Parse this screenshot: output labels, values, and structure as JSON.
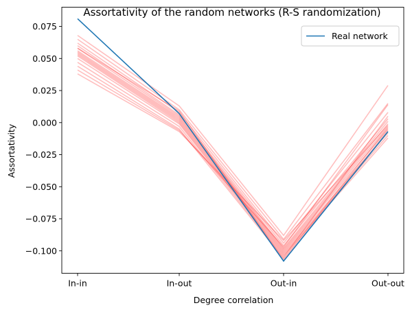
{
  "chart_data": {
    "type": "line",
    "title": "Assortativity of the random networks (R-S randomization)",
    "xlabel": "Degree correlation",
    "ylabel": "Assortativity",
    "categories": [
      "In-in",
      "In-out",
      "Out-in",
      "Out-out"
    ],
    "ylim": [
      -0.1175,
      0.09
    ],
    "yticks": [
      0.075,
      0.05,
      0.025,
      0.0,
      -0.025,
      -0.05,
      -0.075,
      -0.1
    ],
    "ytick_labels": [
      "0.075",
      "0.050",
      "0.025",
      "0.000",
      "−0.025",
      "−0.050",
      "−0.075",
      "−0.100"
    ],
    "grid": false,
    "legend": {
      "position": "top-right",
      "entries": [
        "Real network"
      ]
    },
    "colors": {
      "real": "#1f77b4",
      "random": "#ff0000"
    },
    "series": [
      {
        "name": "Real network",
        "values": [
          0.081,
          0.007,
          -0.108,
          -0.007
        ]
      }
    ],
    "random_series": [
      [
        0.068,
        0.013,
        -0.088,
        0.029
      ],
      [
        0.065,
        0.01,
        -0.091,
        0.015
      ],
      [
        0.062,
        0.008,
        -0.094,
        0.008
      ],
      [
        0.06,
        0.006,
        -0.096,
        0.003
      ],
      [
        0.058,
        0.005,
        -0.098,
        0.001
      ],
      [
        0.056,
        0.004,
        -0.099,
        -0.001
      ],
      [
        0.055,
        0.003,
        -0.1,
        -0.003
      ],
      [
        0.054,
        0.002,
        -0.101,
        -0.005
      ],
      [
        0.053,
        0.001,
        -0.102,
        -0.008
      ],
      [
        0.052,
        0.0,
        -0.103,
        -0.01
      ],
      [
        0.05,
        -0.001,
        -0.104,
        -0.012
      ],
      [
        0.047,
        -0.003,
        -0.105,
        0.005
      ],
      [
        0.044,
        -0.005,
        -0.106,
        -0.004
      ],
      [
        0.041,
        -0.006,
        -0.097,
        0.014
      ],
      [
        0.038,
        -0.007,
        -0.092,
        -0.002
      ],
      [
        0.058,
        0.009,
        -0.107,
        -0.006
      ]
    ]
  }
}
